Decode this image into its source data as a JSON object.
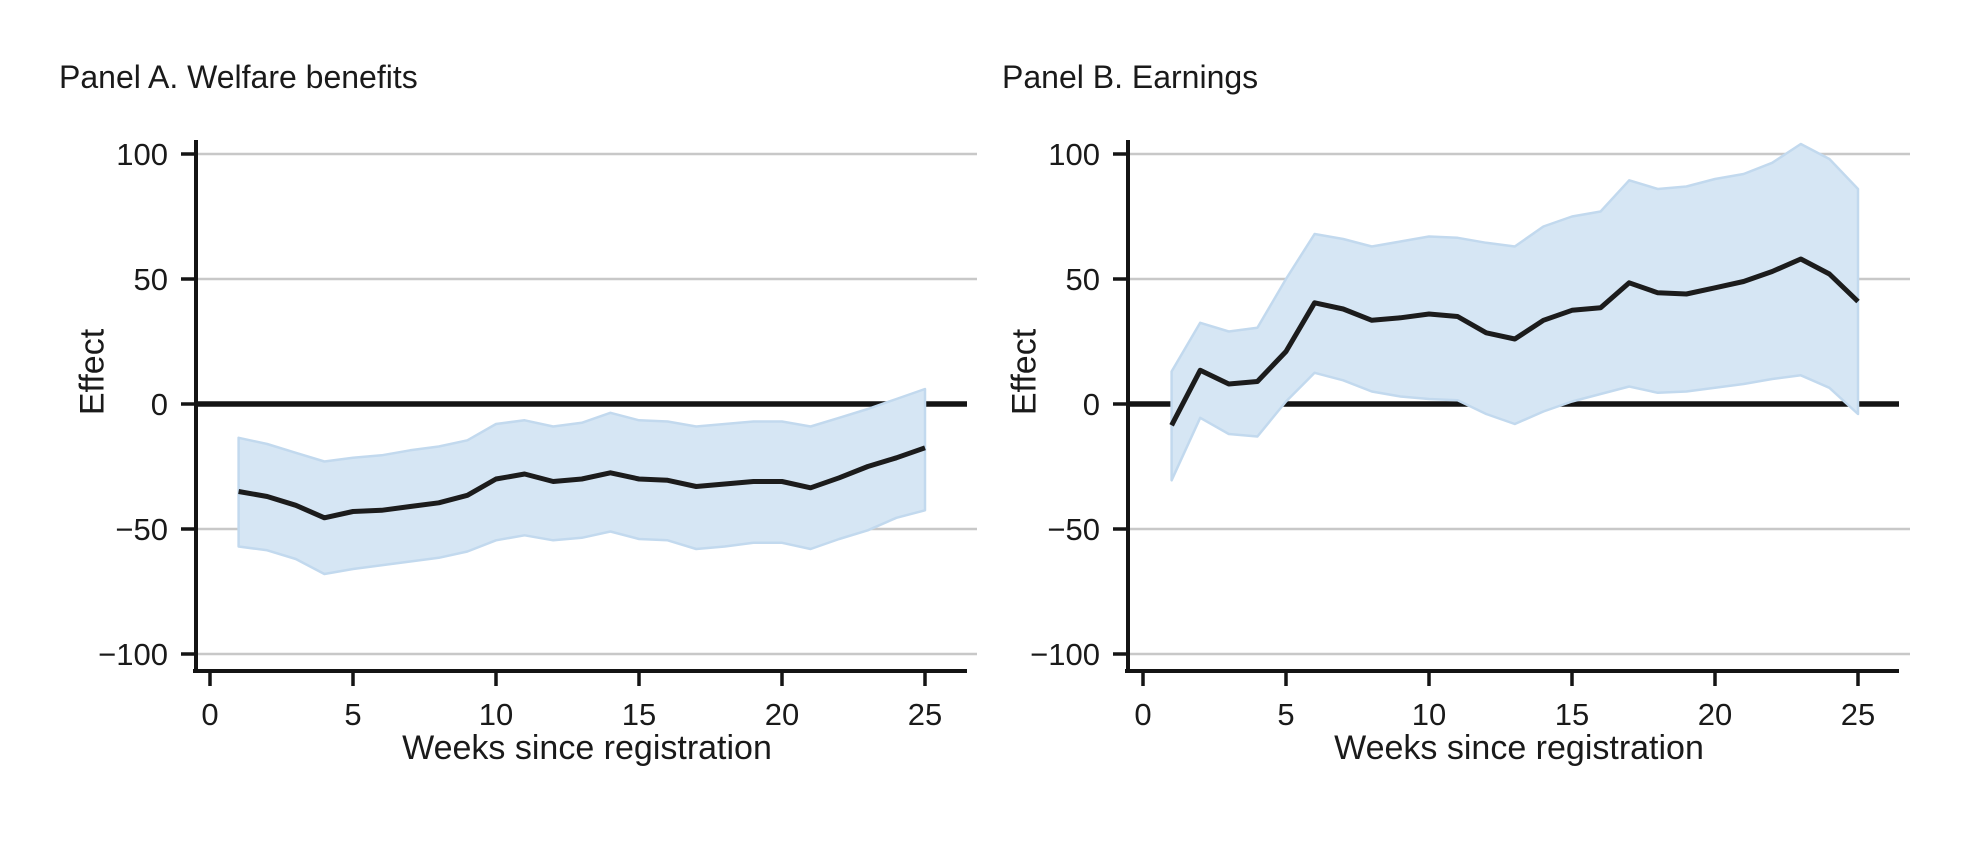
{
  "figure": {
    "background": "#ffffff",
    "text_color": "#1a1a1a"
  },
  "chart_data": [
    {
      "type": "line",
      "panel": "A",
      "title": "Panel A. Welfare benefits",
      "xlabel": "Weeks since registration",
      "ylabel": "Effect",
      "x": [
        1,
        2,
        3,
        4,
        5,
        6,
        7,
        8,
        9,
        10,
        11,
        12,
        13,
        14,
        15,
        16,
        17,
        18,
        19,
        20,
        21,
        22,
        23,
        24,
        25
      ],
      "series": [
        {
          "name": "effect",
          "values": [
            -35,
            -37,
            -40.5,
            -45.5,
            -43,
            -42.5,
            -41,
            -39.5,
            -36.5,
            -30,
            -28,
            -31,
            -30,
            -27.5,
            -30,
            -30.5,
            -33,
            -32,
            -31,
            -31,
            -33.5,
            -29.5,
            -25,
            -21.5,
            -17.5
          ]
        }
      ],
      "ci_upper": [
        -13.5,
        -16,
        -19.5,
        -23,
        -21.5,
        -20.5,
        -18.5,
        -17,
        -14.5,
        -8,
        -6.5,
        -9,
        -7.5,
        -3.5,
        -6.5,
        -7,
        -9,
        -8,
        -7,
        -7,
        -9,
        -5.5,
        -2,
        2,
        6
      ],
      "ci_lower": [
        -57,
        -58.5,
        -62,
        -68,
        -66,
        -64.5,
        -63,
        -61.5,
        -59,
        -54.5,
        -52.5,
        -54.5,
        -53.5,
        -51,
        -54,
        -54.5,
        -58,
        -57,
        -55.5,
        -55.5,
        -58,
        -54,
        -50.5,
        -45.5,
        -42.5
      ],
      "x_ticks": [
        0,
        5,
        10,
        15,
        20,
        25
      ],
      "y_ticks": [
        100,
        50,
        0,
        -50,
        -100
      ],
      "xlim": [
        0,
        27
      ],
      "ylim": [
        -107,
        106
      ],
      "grid": true,
      "zero_line": true,
      "legend": "none",
      "colors": {
        "line": "#1c1c1c",
        "band_fill": "#d6e6f4",
        "band_edge": "#c2d9ee",
        "grid": "#c8c8c8",
        "axis": "#141414"
      }
    },
    {
      "type": "line",
      "panel": "B",
      "title": "Panel B. Earnings",
      "xlabel": "Weeks since registration",
      "ylabel": "Effect",
      "x": [
        1,
        2,
        3,
        4,
        5,
        6,
        7,
        8,
        9,
        10,
        11,
        12,
        13,
        14,
        15,
        16,
        17,
        18,
        19,
        20,
        21,
        22,
        23,
        24,
        25
      ],
      "series": [
        {
          "name": "effect",
          "values": [
            -8.5,
            13.5,
            8,
            9,
            21,
            40.5,
            38,
            33.5,
            34.5,
            36,
            35,
            28.5,
            26,
            33.5,
            37.5,
            38.5,
            48.5,
            44.5,
            44,
            46.5,
            49,
            53,
            58,
            52,
            41
          ]
        }
      ],
      "ci_upper": [
        13,
        32.5,
        29,
        30.5,
        50,
        68,
        66,
        63,
        65,
        67,
        66.5,
        64.5,
        63,
        71,
        75,
        77,
        89.5,
        86,
        87,
        90,
        92,
        96.5,
        104,
        98,
        86
      ],
      "ci_lower": [
        -30.5,
        -5.5,
        -12,
        -13,
        1,
        12.5,
        9.5,
        5,
        3,
        2,
        1.5,
        -4,
        -8,
        -3,
        1,
        4,
        7,
        4.5,
        5,
        6.5,
        8,
        10,
        11.5,
        6.5,
        -4
      ],
      "x_ticks": [
        0,
        5,
        10,
        15,
        20,
        25
      ],
      "y_ticks": [
        100,
        50,
        0,
        -50,
        -100
      ],
      "xlim": [
        0,
        27
      ],
      "ylim": [
        -107,
        106
      ],
      "grid": true,
      "zero_line": true,
      "legend": "none",
      "colors": {
        "line": "#1c1c1c",
        "band_fill": "#d6e6f4",
        "band_edge": "#c2d9ee",
        "grid": "#c8c8c8",
        "axis": "#141414"
      }
    }
  ]
}
